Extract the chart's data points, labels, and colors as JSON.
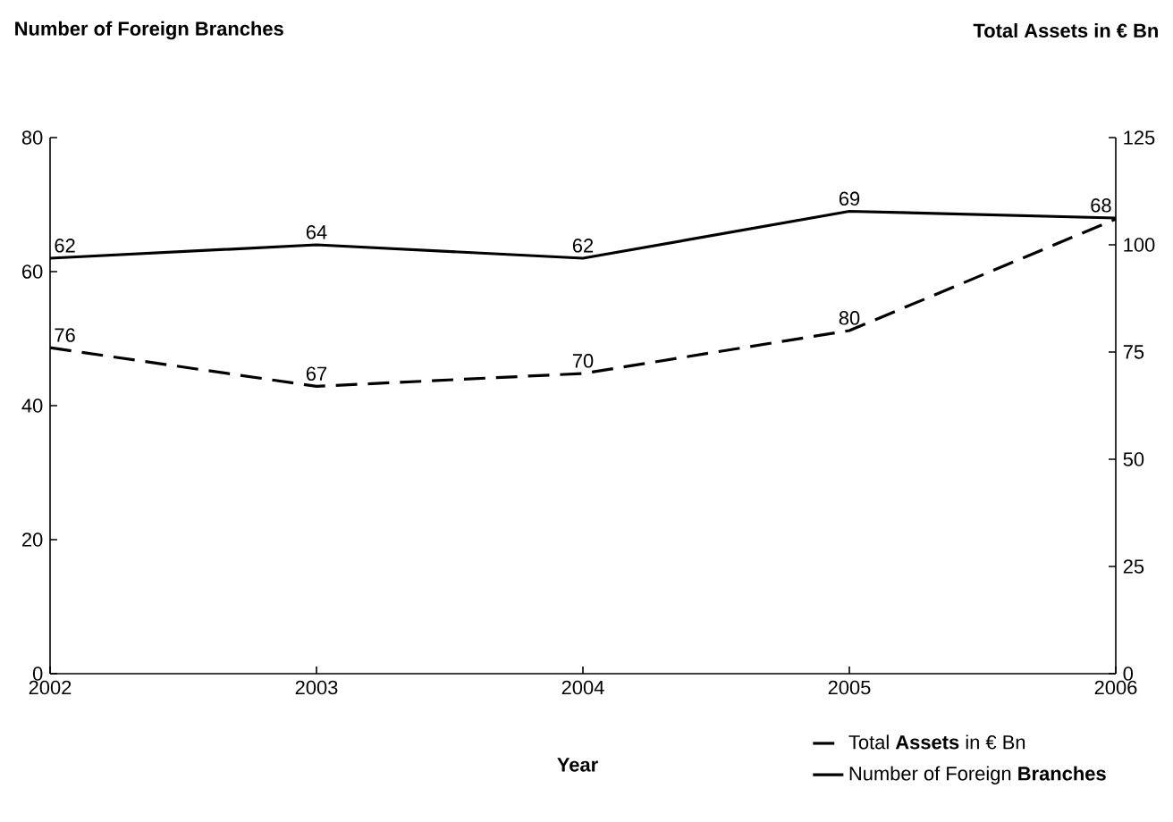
{
  "chart_data": {
    "type": "line",
    "xlabel": "Year",
    "ylabel": "Number of Foreign Branches",
    "y2label": "Total Assets in € Bn",
    "x": [
      2002,
      2003,
      2004,
      2005,
      2006
    ],
    "xlim": [
      2002,
      2006
    ],
    "xticks": [
      2002,
      2003,
      2004,
      2005,
      2006
    ],
    "ylim": [
      0,
      80
    ],
    "yticks": [
      0,
      20,
      40,
      60,
      80
    ],
    "y2lim": [
      0,
      125
    ],
    "y2ticks": [
      0,
      25,
      50,
      75,
      100,
      125
    ],
    "series": [
      {
        "name": "Total **Assets** in € Bn",
        "color": "#000000",
        "axis": "y2",
        "line_style": "dashed",
        "values": [
          76,
          67,
          70,
          80,
          106
        ],
        "value_labels": [
          "76",
          "67",
          "70",
          "80",
          null
        ]
      },
      {
        "name": "Number of Foreign **Branches**",
        "color": "#000000",
        "line_style": "solid",
        "values": [
          62,
          64,
          62,
          69,
          68
        ],
        "value_labels": [
          "62",
          "64",
          "62",
          "69",
          "68"
        ]
      }
    ],
    "legend": "bottom right",
    "marker": "none",
    "grid": false
  }
}
